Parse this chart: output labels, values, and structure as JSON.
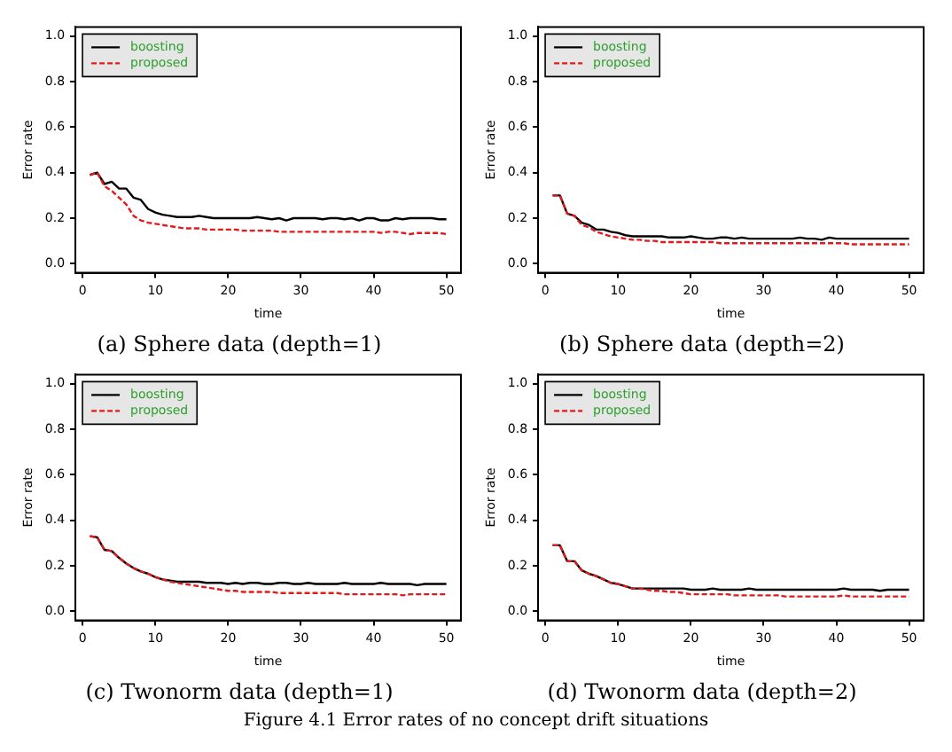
{
  "chart_data": [
    {
      "type": "line",
      "title": "(a) Sphere data (depth=1)",
      "xlabel": "time",
      "ylabel": "Error rate",
      "x": [
        1,
        2,
        3,
        4,
        5,
        6,
        7,
        8,
        9,
        10,
        11,
        12,
        13,
        14,
        15,
        16,
        17,
        18,
        19,
        20,
        21,
        22,
        23,
        24,
        25,
        26,
        27,
        28,
        29,
        30,
        31,
        32,
        33,
        34,
        35,
        36,
        37,
        38,
        39,
        40,
        41,
        42,
        43,
        44,
        45,
        46,
        47,
        48,
        49,
        50
      ],
      "xlim": [
        -1,
        52
      ],
      "xticks": [
        0,
        10,
        20,
        30,
        40,
        50
      ],
      "ylim": [
        -0.04,
        1.04
      ],
      "yticks": [
        {
          "value": 0,
          "label": "0.0"
        },
        {
          "value": 0.2,
          "label": "0.2"
        },
        {
          "value": 0.4,
          "label": "0.4"
        },
        {
          "value": 0.6,
          "label": "0.6"
        },
        {
          "value": 0.8,
          "label": "0.8"
        },
        {
          "value": 1,
          "label": "1.0"
        }
      ],
      "legend": "top left",
      "marker": "none",
      "series": [
        {
          "name": "boosting",
          "color": "#000000",
          "line_style": "solid",
          "values": [
            0.39,
            0.4,
            0.35,
            0.36,
            0.33,
            0.33,
            0.29,
            0.28,
            0.24,
            0.225,
            0.215,
            0.21,
            0.205,
            0.205,
            0.205,
            0.21,
            0.205,
            0.2,
            0.2,
            0.2,
            0.2,
            0.2,
            0.2,
            0.205,
            0.2,
            0.195,
            0.2,
            0.19,
            0.2,
            0.2,
            0.2,
            0.2,
            0.195,
            0.2,
            0.2,
            0.195,
            0.2,
            0.19,
            0.2,
            0.2,
            0.19,
            0.19,
            0.2,
            0.195,
            0.2,
            0.2,
            0.2,
            0.2,
            0.195,
            0.195
          ]
        },
        {
          "name": "proposed",
          "color": "#e31a1c",
          "line_style": "dashed",
          "values": [
            0.39,
            0.4,
            0.34,
            0.32,
            0.29,
            0.26,
            0.21,
            0.19,
            0.18,
            0.175,
            0.17,
            0.165,
            0.16,
            0.155,
            0.155,
            0.155,
            0.15,
            0.15,
            0.15,
            0.15,
            0.15,
            0.145,
            0.145,
            0.145,
            0.145,
            0.145,
            0.14,
            0.14,
            0.14,
            0.14,
            0.14,
            0.14,
            0.14,
            0.14,
            0.14,
            0.14,
            0.14,
            0.14,
            0.14,
            0.14,
            0.135,
            0.14,
            0.14,
            0.135,
            0.13,
            0.135,
            0.135,
            0.135,
            0.135,
            0.13
          ]
        }
      ]
    },
    {
      "type": "line",
      "title": "(b) Sphere data (depth=2)",
      "xlabel": "time",
      "ylabel": "Error rate",
      "x": [
        1,
        2,
        3,
        4,
        5,
        6,
        7,
        8,
        9,
        10,
        11,
        12,
        13,
        14,
        15,
        16,
        17,
        18,
        19,
        20,
        21,
        22,
        23,
        24,
        25,
        26,
        27,
        28,
        29,
        30,
        31,
        32,
        33,
        34,
        35,
        36,
        37,
        38,
        39,
        40,
        41,
        42,
        43,
        44,
        45,
        46,
        47,
        48,
        49,
        50
      ],
      "xlim": [
        -1,
        52
      ],
      "xticks": [
        0,
        10,
        20,
        30,
        40,
        50
      ],
      "ylim": [
        -0.04,
        1.04
      ],
      "yticks": [
        {
          "value": 0,
          "label": "0.0"
        },
        {
          "value": 0.2,
          "label": "0.2"
        },
        {
          "value": 0.4,
          "label": "0.4"
        },
        {
          "value": 0.6,
          "label": "0.6"
        },
        {
          "value": 0.8,
          "label": "0.8"
        },
        {
          "value": 1,
          "label": "1.0"
        }
      ],
      "legend": "top left",
      "marker": "none",
      "series": [
        {
          "name": "boosting",
          "color": "#000000",
          "line_style": "solid",
          "values": [
            0.3,
            0.3,
            0.22,
            0.21,
            0.18,
            0.17,
            0.15,
            0.15,
            0.14,
            0.135,
            0.125,
            0.12,
            0.12,
            0.12,
            0.12,
            0.12,
            0.115,
            0.115,
            0.115,
            0.12,
            0.115,
            0.11,
            0.11,
            0.115,
            0.115,
            0.11,
            0.115,
            0.11,
            0.11,
            0.11,
            0.11,
            0.11,
            0.11,
            0.11,
            0.115,
            0.11,
            0.11,
            0.105,
            0.115,
            0.11,
            0.11,
            0.11,
            0.11,
            0.11,
            0.11,
            0.11,
            0.11,
            0.11,
            0.11,
            0.11
          ]
        },
        {
          "name": "proposed",
          "color": "#e31a1c",
          "line_style": "dashed",
          "values": [
            0.3,
            0.3,
            0.22,
            0.21,
            0.17,
            0.16,
            0.14,
            0.13,
            0.12,
            0.115,
            0.11,
            0.105,
            0.105,
            0.1,
            0.1,
            0.095,
            0.095,
            0.095,
            0.095,
            0.095,
            0.095,
            0.095,
            0.095,
            0.09,
            0.09,
            0.09,
            0.09,
            0.09,
            0.09,
            0.09,
            0.09,
            0.09,
            0.09,
            0.09,
            0.09,
            0.09,
            0.09,
            0.09,
            0.09,
            0.09,
            0.09,
            0.085,
            0.085,
            0.085,
            0.085,
            0.085,
            0.085,
            0.085,
            0.085,
            0.085
          ]
        }
      ]
    },
    {
      "type": "line",
      "title": "(c) Twonorm data (depth=1)",
      "xlabel": "time",
      "ylabel": "Error rate",
      "x": [
        1,
        2,
        3,
        4,
        5,
        6,
        7,
        8,
        9,
        10,
        11,
        12,
        13,
        14,
        15,
        16,
        17,
        18,
        19,
        20,
        21,
        22,
        23,
        24,
        25,
        26,
        27,
        28,
        29,
        30,
        31,
        32,
        33,
        34,
        35,
        36,
        37,
        38,
        39,
        40,
        41,
        42,
        43,
        44,
        45,
        46,
        47,
        48,
        49,
        50
      ],
      "xlim": [
        -1,
        52
      ],
      "xticks": [
        0,
        10,
        20,
        30,
        40,
        50
      ],
      "ylim": [
        -0.04,
        1.04
      ],
      "yticks": [
        {
          "value": 0,
          "label": "0.0"
        },
        {
          "value": 0.2,
          "label": "0.2"
        },
        {
          "value": 0.4,
          "label": "0.4"
        },
        {
          "value": 0.6,
          "label": "0.6"
        },
        {
          "value": 0.8,
          "label": "0.8"
        },
        {
          "value": 1,
          "label": "1.0"
        }
      ],
      "legend": "top left",
      "marker": "none",
      "series": [
        {
          "name": "boosting",
          "color": "#000000",
          "line_style": "solid",
          "values": [
            0.33,
            0.325,
            0.27,
            0.265,
            0.235,
            0.21,
            0.19,
            0.175,
            0.165,
            0.15,
            0.14,
            0.135,
            0.13,
            0.13,
            0.13,
            0.13,
            0.125,
            0.125,
            0.125,
            0.12,
            0.125,
            0.12,
            0.125,
            0.125,
            0.12,
            0.12,
            0.125,
            0.125,
            0.12,
            0.12,
            0.125,
            0.12,
            0.12,
            0.12,
            0.12,
            0.125,
            0.12,
            0.12,
            0.12,
            0.12,
            0.125,
            0.12,
            0.12,
            0.12,
            0.12,
            0.115,
            0.12,
            0.12,
            0.12,
            0.12
          ]
        },
        {
          "name": "proposed",
          "color": "#e31a1c",
          "line_style": "dashed",
          "values": [
            0.33,
            0.325,
            0.27,
            0.265,
            0.235,
            0.21,
            0.19,
            0.175,
            0.165,
            0.15,
            0.14,
            0.13,
            0.125,
            0.12,
            0.115,
            0.11,
            0.105,
            0.1,
            0.095,
            0.09,
            0.09,
            0.085,
            0.085,
            0.085,
            0.085,
            0.085,
            0.08,
            0.08,
            0.08,
            0.08,
            0.08,
            0.08,
            0.08,
            0.08,
            0.08,
            0.075,
            0.075,
            0.075,
            0.075,
            0.075,
            0.075,
            0.075,
            0.075,
            0.07,
            0.075,
            0.075,
            0.075,
            0.075,
            0.075,
            0.075
          ]
        }
      ]
    },
    {
      "type": "line",
      "title": "(d) Twonorm data (depth=2)",
      "xlabel": "time",
      "ylabel": "Error rate",
      "x": [
        1,
        2,
        3,
        4,
        5,
        6,
        7,
        8,
        9,
        10,
        11,
        12,
        13,
        14,
        15,
        16,
        17,
        18,
        19,
        20,
        21,
        22,
        23,
        24,
        25,
        26,
        27,
        28,
        29,
        30,
        31,
        32,
        33,
        34,
        35,
        36,
        37,
        38,
        39,
        40,
        41,
        42,
        43,
        44,
        45,
        46,
        47,
        48,
        49,
        50
      ],
      "xlim": [
        -1,
        52
      ],
      "xticks": [
        0,
        10,
        20,
        30,
        40,
        50
      ],
      "ylim": [
        -0.04,
        1.04
      ],
      "yticks": [
        {
          "value": 0,
          "label": "0.0"
        },
        {
          "value": 0.2,
          "label": "0.2"
        },
        {
          "value": 0.4,
          "label": "0.4"
        },
        {
          "value": 0.6,
          "label": "0.6"
        },
        {
          "value": 0.8,
          "label": "0.8"
        },
        {
          "value": 1,
          "label": "1.0"
        }
      ],
      "legend": "top left",
      "marker": "none",
      "annotations": [
        "Figure 4.1 Error rates of no concept drift situations"
      ],
      "series": [
        {
          "name": "boosting",
          "color": "#000000",
          "line_style": "solid",
          "values": [
            0.29,
            0.29,
            0.22,
            0.22,
            0.18,
            0.165,
            0.155,
            0.14,
            0.125,
            0.12,
            0.11,
            0.1,
            0.1,
            0.1,
            0.1,
            0.1,
            0.1,
            0.1,
            0.1,
            0.095,
            0.095,
            0.095,
            0.1,
            0.095,
            0.095,
            0.095,
            0.095,
            0.1,
            0.095,
            0.095,
            0.095,
            0.095,
            0.095,
            0.095,
            0.095,
            0.095,
            0.095,
            0.095,
            0.095,
            0.095,
            0.1,
            0.095,
            0.095,
            0.095,
            0.095,
            0.09,
            0.095,
            0.095,
            0.095,
            0.095
          ]
        },
        {
          "name": "proposed",
          "color": "#e31a1c",
          "line_style": "dashed",
          "values": [
            0.29,
            0.29,
            0.22,
            0.22,
            0.18,
            0.165,
            0.155,
            0.14,
            0.125,
            0.12,
            0.11,
            0.1,
            0.1,
            0.095,
            0.09,
            0.09,
            0.085,
            0.085,
            0.08,
            0.075,
            0.075,
            0.075,
            0.075,
            0.075,
            0.075,
            0.07,
            0.07,
            0.07,
            0.07,
            0.07,
            0.07,
            0.07,
            0.065,
            0.065,
            0.065,
            0.065,
            0.065,
            0.065,
            0.065,
            0.065,
            0.07,
            0.065,
            0.065,
            0.065,
            0.065,
            0.065,
            0.065,
            0.065,
            0.065,
            0.065
          ]
        }
      ]
    }
  ]
}
